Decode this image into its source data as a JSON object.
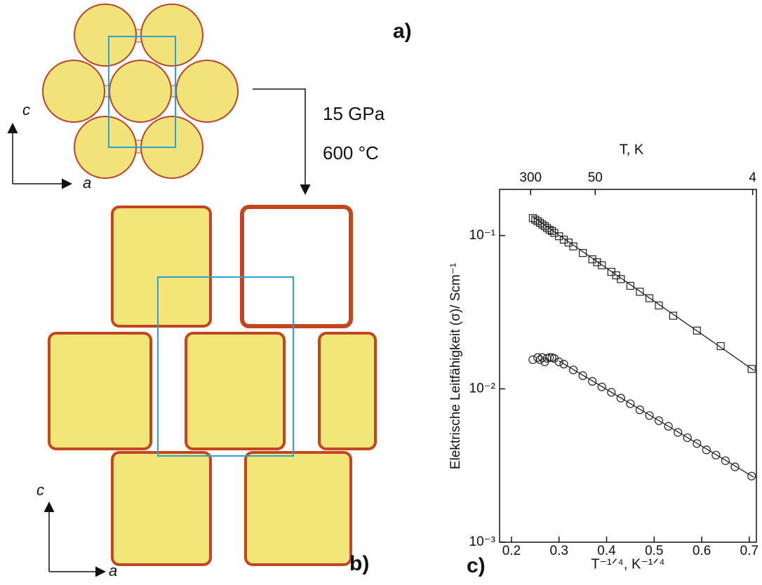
{
  "figure": {
    "panel_a": "a)",
    "panel_b": "b)",
    "panel_c": "c)",
    "pressure": "15 GPa",
    "temperature": "600 °C",
    "axis_c_top": "c",
    "axis_a_top": "a",
    "axis_c_bottom": "c",
    "axis_a_bottom": "a"
  },
  "chart_data": {
    "type": "scatter",
    "x_label": "T⁻¹ᐟ⁴, K⁻¹ᐟ⁴",
    "y_label": "Elektrische Leitfähigkeit (σ)/ Scm⁻¹",
    "x2_label": "T, K",
    "xlim": [
      0.175,
      0.715
    ],
    "xticks": [
      0.2,
      0.3,
      0.4,
      0.5,
      0.6,
      0.7
    ],
    "ylim": [
      0.001,
      0.2
    ],
    "log_y": true,
    "yticks": [
      {
        "value": 0.001,
        "label": "10⁻³"
      },
      {
        "value": 0.01,
        "label": "10⁻²"
      },
      {
        "value": 0.1,
        "label": "10⁻¹"
      }
    ],
    "x2ticks": [
      300,
      50,
      4
    ],
    "series": [
      {
        "marker": "square",
        "color": "#222222",
        "x": [
          0.245,
          0.25,
          0.255,
          0.26,
          0.265,
          0.27,
          0.275,
          0.28,
          0.285,
          0.29,
          0.3,
          0.31,
          0.32,
          0.33,
          0.35,
          0.37,
          0.38,
          0.39,
          0.41,
          0.42,
          0.43,
          0.45,
          0.47,
          0.49,
          0.51,
          0.54,
          0.59,
          0.64,
          0.705
        ],
        "values": [
          0.13,
          0.127,
          0.124,
          0.121,
          0.118,
          0.115,
          0.112,
          0.109,
          0.107,
          0.104,
          0.099,
          0.094,
          0.09,
          0.085,
          0.077,
          0.07,
          0.067,
          0.064,
          0.058,
          0.055,
          0.052,
          0.047,
          0.043,
          0.039,
          0.035,
          0.03,
          0.024,
          0.019,
          0.0135
        ]
      },
      {
        "marker": "circle",
        "color": "#222222",
        "x": [
          0.245,
          0.255,
          0.26,
          0.265,
          0.27,
          0.275,
          0.28,
          0.285,
          0.29,
          0.3,
          0.31,
          0.33,
          0.35,
          0.37,
          0.39,
          0.41,
          0.43,
          0.45,
          0.47,
          0.49,
          0.51,
          0.53,
          0.55,
          0.57,
          0.59,
          0.61,
          0.63,
          0.65,
          0.67,
          0.705
        ],
        "values": [
          0.0155,
          0.016,
          0.0155,
          0.016,
          0.015,
          0.0158,
          0.016,
          0.016,
          0.0158,
          0.015,
          0.0145,
          0.0133,
          0.0122,
          0.0112,
          0.0103,
          0.0095,
          0.0087,
          0.008,
          0.0073,
          0.0067,
          0.0062,
          0.0057,
          0.0052,
          0.0048,
          0.0044,
          0.004,
          0.0037,
          0.0034,
          0.0031,
          0.0027
        ]
      },
      {
        "marker": "line",
        "color": "#222222",
        "x": [
          0.245,
          0.71
        ],
        "values": [
          0.132,
          0.0132
        ]
      },
      {
        "marker": "line",
        "color": "#222222",
        "x": [
          0.3,
          0.71
        ],
        "values": [
          0.0152,
          0.00265
        ]
      }
    ]
  }
}
